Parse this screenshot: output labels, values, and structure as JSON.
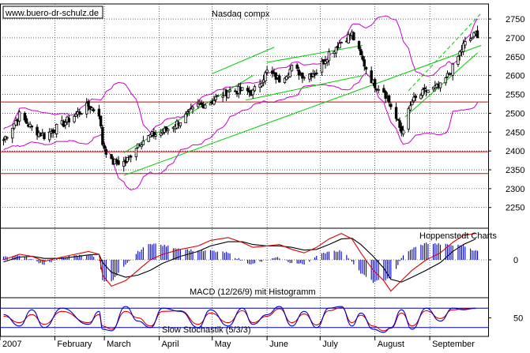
{
  "header": {
    "watermark": "www.buero-dr-schulz.de",
    "title": "Nasdaq compx",
    "source": "Hoppenstedt Charts"
  },
  "colors": {
    "price": "#000000",
    "bollinger": "#cc00cc",
    "channel": "#00cc00",
    "support": "#dd0000",
    "macd_hist": "#0000cc",
    "macd_line": "#000000",
    "signal_line": "#dd0000",
    "stoch_k": "#0000cc",
    "stoch_d": "#dd0000",
    "stoch_level": "#0000aa",
    "grid": "#000000"
  },
  "chart_data": [
    {
      "type": "candlestick",
      "title": "Nasdaq compx",
      "y_ticks": [
        2250,
        2300,
        2350,
        2400,
        2450,
        2500,
        2550,
        2600,
        2650,
        2700,
        2750
      ],
      "ylim": [
        2195,
        2790
      ],
      "x_months": [
        "2007",
        "February",
        "March",
        "April",
        "May",
        "June",
        "July",
        "August",
        "September"
      ],
      "grid": "dotted",
      "support_levels": [
        2340,
        2398,
        2530
      ],
      "close_samples": [
        {
          "date": "2007-01-03",
          "close": 2430
        },
        {
          "date": "2007-01-12",
          "close": 2495
        },
        {
          "date": "2007-01-19",
          "close": 2460
        },
        {
          "date": "2007-01-26",
          "close": 2440
        },
        {
          "date": "2007-02-05",
          "close": 2470
        },
        {
          "date": "2007-02-20",
          "close": 2520
        },
        {
          "date": "2007-02-26",
          "close": 2500
        },
        {
          "date": "2007-02-28",
          "close": 2420
        },
        {
          "date": "2007-03-05",
          "close": 2370
        },
        {
          "date": "2007-03-13",
          "close": 2370
        },
        {
          "date": "2007-03-20",
          "close": 2420
        },
        {
          "date": "2007-03-27",
          "close": 2440
        },
        {
          "date": "2007-04-03",
          "close": 2450
        },
        {
          "date": "2007-04-13",
          "close": 2480
        },
        {
          "date": "2007-04-23",
          "close": 2520
        },
        {
          "date": "2007-04-30",
          "close": 2530
        },
        {
          "date": "2007-05-10",
          "close": 2560
        },
        {
          "date": "2007-05-18",
          "close": 2560
        },
        {
          "date": "2007-05-24",
          "close": 2555
        },
        {
          "date": "2007-06-01",
          "close": 2610
        },
        {
          "date": "2007-06-08",
          "close": 2590
        },
        {
          "date": "2007-06-15",
          "close": 2620
        },
        {
          "date": "2007-06-22",
          "close": 2600
        },
        {
          "date": "2007-06-29",
          "close": 2610
        },
        {
          "date": "2007-07-06",
          "close": 2660
        },
        {
          "date": "2007-07-13",
          "close": 2690
        },
        {
          "date": "2007-07-19",
          "close": 2710
        },
        {
          "date": "2007-07-24",
          "close": 2650
        },
        {
          "date": "2007-07-31",
          "close": 2580
        },
        {
          "date": "2007-08-06",
          "close": 2560
        },
        {
          "date": "2007-08-10",
          "close": 2520
        },
        {
          "date": "2007-08-16",
          "close": 2450
        },
        {
          "date": "2007-08-22",
          "close": 2530
        },
        {
          "date": "2007-08-30",
          "close": 2560
        },
        {
          "date": "2007-09-07",
          "close": 2570
        },
        {
          "date": "2007-09-14",
          "close": 2620
        },
        {
          "date": "2007-09-20",
          "close": 2680
        },
        {
          "date": "2007-09-27",
          "close": 2710
        }
      ]
    },
    {
      "type": "line",
      "title": "MACD (12/26/9) mit Histogramm",
      "y_ticks": [
        0
      ],
      "ylim": [
        -50,
        50
      ],
      "series": [
        {
          "values": [
            0,
            8,
            5,
            -2,
            4,
            12,
            8,
            -22,
            -38,
            -30,
            -15,
            0,
            8,
            15,
            20,
            28,
            32,
            25,
            18,
            20,
            22,
            15,
            10,
            18,
            30,
            38,
            30,
            10,
            -15,
            -30,
            -45,
            -30,
            -15,
            0,
            10,
            25,
            35,
            38
          ]
        },
        {
          "values": [
            -3,
            4,
            5,
            2,
            2,
            7,
            8,
            -4,
            -18,
            -25,
            -22,
            -15,
            -5,
            5,
            12,
            20,
            26,
            26,
            22,
            20,
            20,
            18,
            14,
            15,
            22,
            30,
            31,
            22,
            5,
            -12,
            -28,
            -32,
            -25,
            -15,
            -4,
            12,
            22,
            30
          ]
        }
      ]
    },
    {
      "type": "line",
      "title": "Slow Stochastik (5/3/3)",
      "y_ticks": [
        50
      ],
      "ylim": [
        0,
        100
      ],
      "levels": [
        20,
        80
      ],
      "series": [
        {
          "values": [
            60,
            25,
            75,
            20,
            80,
            30,
            70,
            15,
            10,
            85,
            40,
            20,
            80,
            70,
            20,
            75,
            25,
            80,
            30,
            60,
            85,
            25,
            70,
            20,
            80,
            85,
            25,
            65,
            15,
            5,
            20,
            75,
            15,
            80,
            40,
            80,
            75,
            80
          ]
        },
        {
          "values": [
            55,
            35,
            60,
            30,
            70,
            35,
            60,
            25,
            15,
            70,
            50,
            25,
            70,
            72,
            30,
            65,
            35,
            72,
            35,
            55,
            78,
            35,
            62,
            28,
            72,
            82,
            35,
            58,
            25,
            10,
            18,
            65,
            25,
            72,
            48,
            75,
            78,
            79
          ]
        }
      ]
    }
  ]
}
